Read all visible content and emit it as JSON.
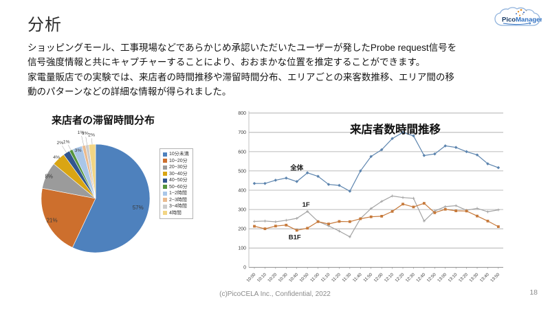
{
  "slide": {
    "title": "分析",
    "body_lines": [
      "ショッピングモール、工事現場などであらかじめ承認いただいたユーザーが発したProbe request信号を",
      "信号強度情報と共にキャプチャーすることにより、おおまかな位置を推定することができます。",
      "家電量販店での実験では、来店者の時間推移や滞留時間分布、エリアごとの来客数推移、エリア間の移",
      "動のパターンなどの詳細な情報が得られました。"
    ],
    "footer": "(c)PicoCELA Inc., Confidential, 2022",
    "page_number": "18",
    "logo": {
      "pico": "Pico",
      "manager": "Manager",
      "registered": "®"
    }
  },
  "chart_data": [
    {
      "type": "pie",
      "title": "来店者の滞留時間分布",
      "labels": [
        "10分未満",
        "10~20分",
        "20~30分",
        "30~40分",
        "40~50分",
        "50~60分",
        "1~2時間",
        "2~3時間",
        "3~4時間",
        "4時間"
      ],
      "values": [
        57,
        21,
        8,
        4,
        2,
        1,
        3,
        1,
        1,
        2
      ],
      "percent_labels": [
        "57%",
        "21%",
        "8%",
        "4%",
        "2%",
        "1%",
        "3%",
        "1%",
        "1%",
        "2%"
      ],
      "colors": [
        "#4e81bd",
        "#cd6f2d",
        "#9b9b9b",
        "#d9a513",
        "#32568e",
        "#55953d",
        "#a9c6e8",
        "#eaba8e",
        "#cccccc",
        "#f2d584"
      ],
      "legend_position": "right",
      "label_radius": [
        0.8,
        0.9,
        0.95,
        1.05,
        1.22,
        1.18,
        0.95,
        1.25,
        1.22,
        1.18
      ]
    },
    {
      "type": "line",
      "title": "来店者数時間推移",
      "x": [
        "10:00",
        "10:10",
        "10:20",
        "10:30",
        "10:40",
        "10:50",
        "11:00",
        "11:10",
        "11:20",
        "11:30",
        "11:40",
        "11:50",
        "12:00",
        "12:10",
        "12:20",
        "12:30",
        "12:40",
        "12:50",
        "13:00",
        "13:10",
        "13:20",
        "13:30",
        "13:40",
        "13:50"
      ],
      "ylim": [
        0,
        800
      ],
      "ytick_step": 100,
      "grid": true,
      "series": [
        {
          "name": "全体",
          "color": "#5c84ae",
          "marker": "diamond",
          "values": [
            435,
            435,
            452,
            463,
            445,
            490,
            472,
            430,
            425,
            395,
            500,
            575,
            610,
            668,
            700,
            682,
            580,
            588,
            630,
            622,
            600,
            583,
            537,
            517
          ]
        },
        {
          "name": "1F",
          "color": "#a3a3a3",
          "marker": "cross",
          "values": [
            238,
            240,
            236,
            244,
            254,
            290,
            238,
            215,
            188,
            158,
            253,
            305,
            342,
            370,
            362,
            358,
            240,
            292,
            315,
            320,
            296,
            306,
            288,
            298
          ]
        },
        {
          "name": "B1F",
          "color": "#c6793a",
          "marker": "square",
          "values": [
            213,
            200,
            214,
            219,
            192,
            203,
            237,
            225,
            238,
            237,
            252,
            262,
            265,
            290,
            328,
            313,
            332,
            283,
            301,
            293,
            292,
            266,
            240,
            211
          ]
        }
      ]
    }
  ]
}
